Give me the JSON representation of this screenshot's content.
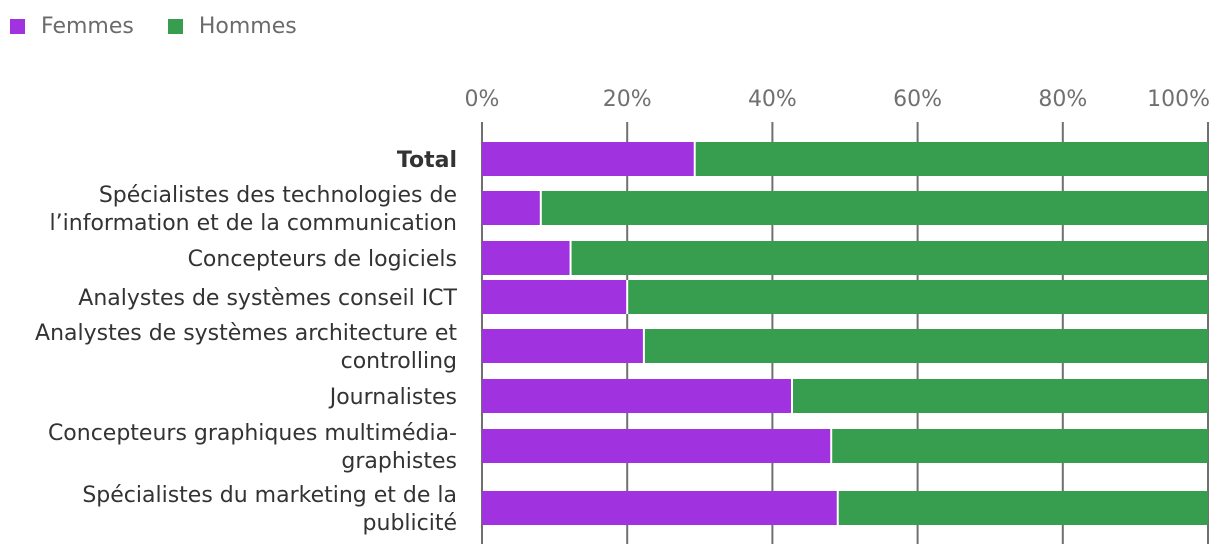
{
  "legend": {
    "femmes": "Femmes",
    "hommes": "Hommes"
  },
  "colors": {
    "femmes": "#a032e0",
    "hommes": "#389e4f",
    "grid": "#707070"
  },
  "chart_data": {
    "type": "bar",
    "orientation": "horizontal",
    "stacked": true,
    "percent": true,
    "categories": [
      [
        "Total"
      ],
      [
        "Spécialistes des technologies de",
        "l’information et de la communication"
      ],
      [
        "Concepteurs de logiciels"
      ],
      [
        "Analystes de systèmes conseil ICT"
      ],
      [
        "Analystes de systèmes architecture et",
        "controlling"
      ],
      [
        "Journalistes"
      ],
      [
        "Concepteurs graphiques multimédia-",
        "graphistes"
      ],
      [
        "Spécialistes du marketing et de la",
        "publicité"
      ]
    ],
    "series": [
      {
        "name": "Femmes",
        "values": [
          29.3,
          8.1,
          12.2,
          20.0,
          22.3,
          42.7,
          48.1,
          49.0
        ]
      },
      {
        "name": "Hommes",
        "values": [
          70.7,
          91.9,
          87.8,
          80.0,
          77.7,
          57.3,
          51.9,
          51.0
        ]
      }
    ],
    "xlim": [
      0,
      100
    ],
    "xticks": [
      "0%",
      "20%",
      "40%",
      "60%",
      "80%",
      "100%"
    ],
    "legend_position": "top-left",
    "bold_categories": [
      "Total"
    ]
  }
}
